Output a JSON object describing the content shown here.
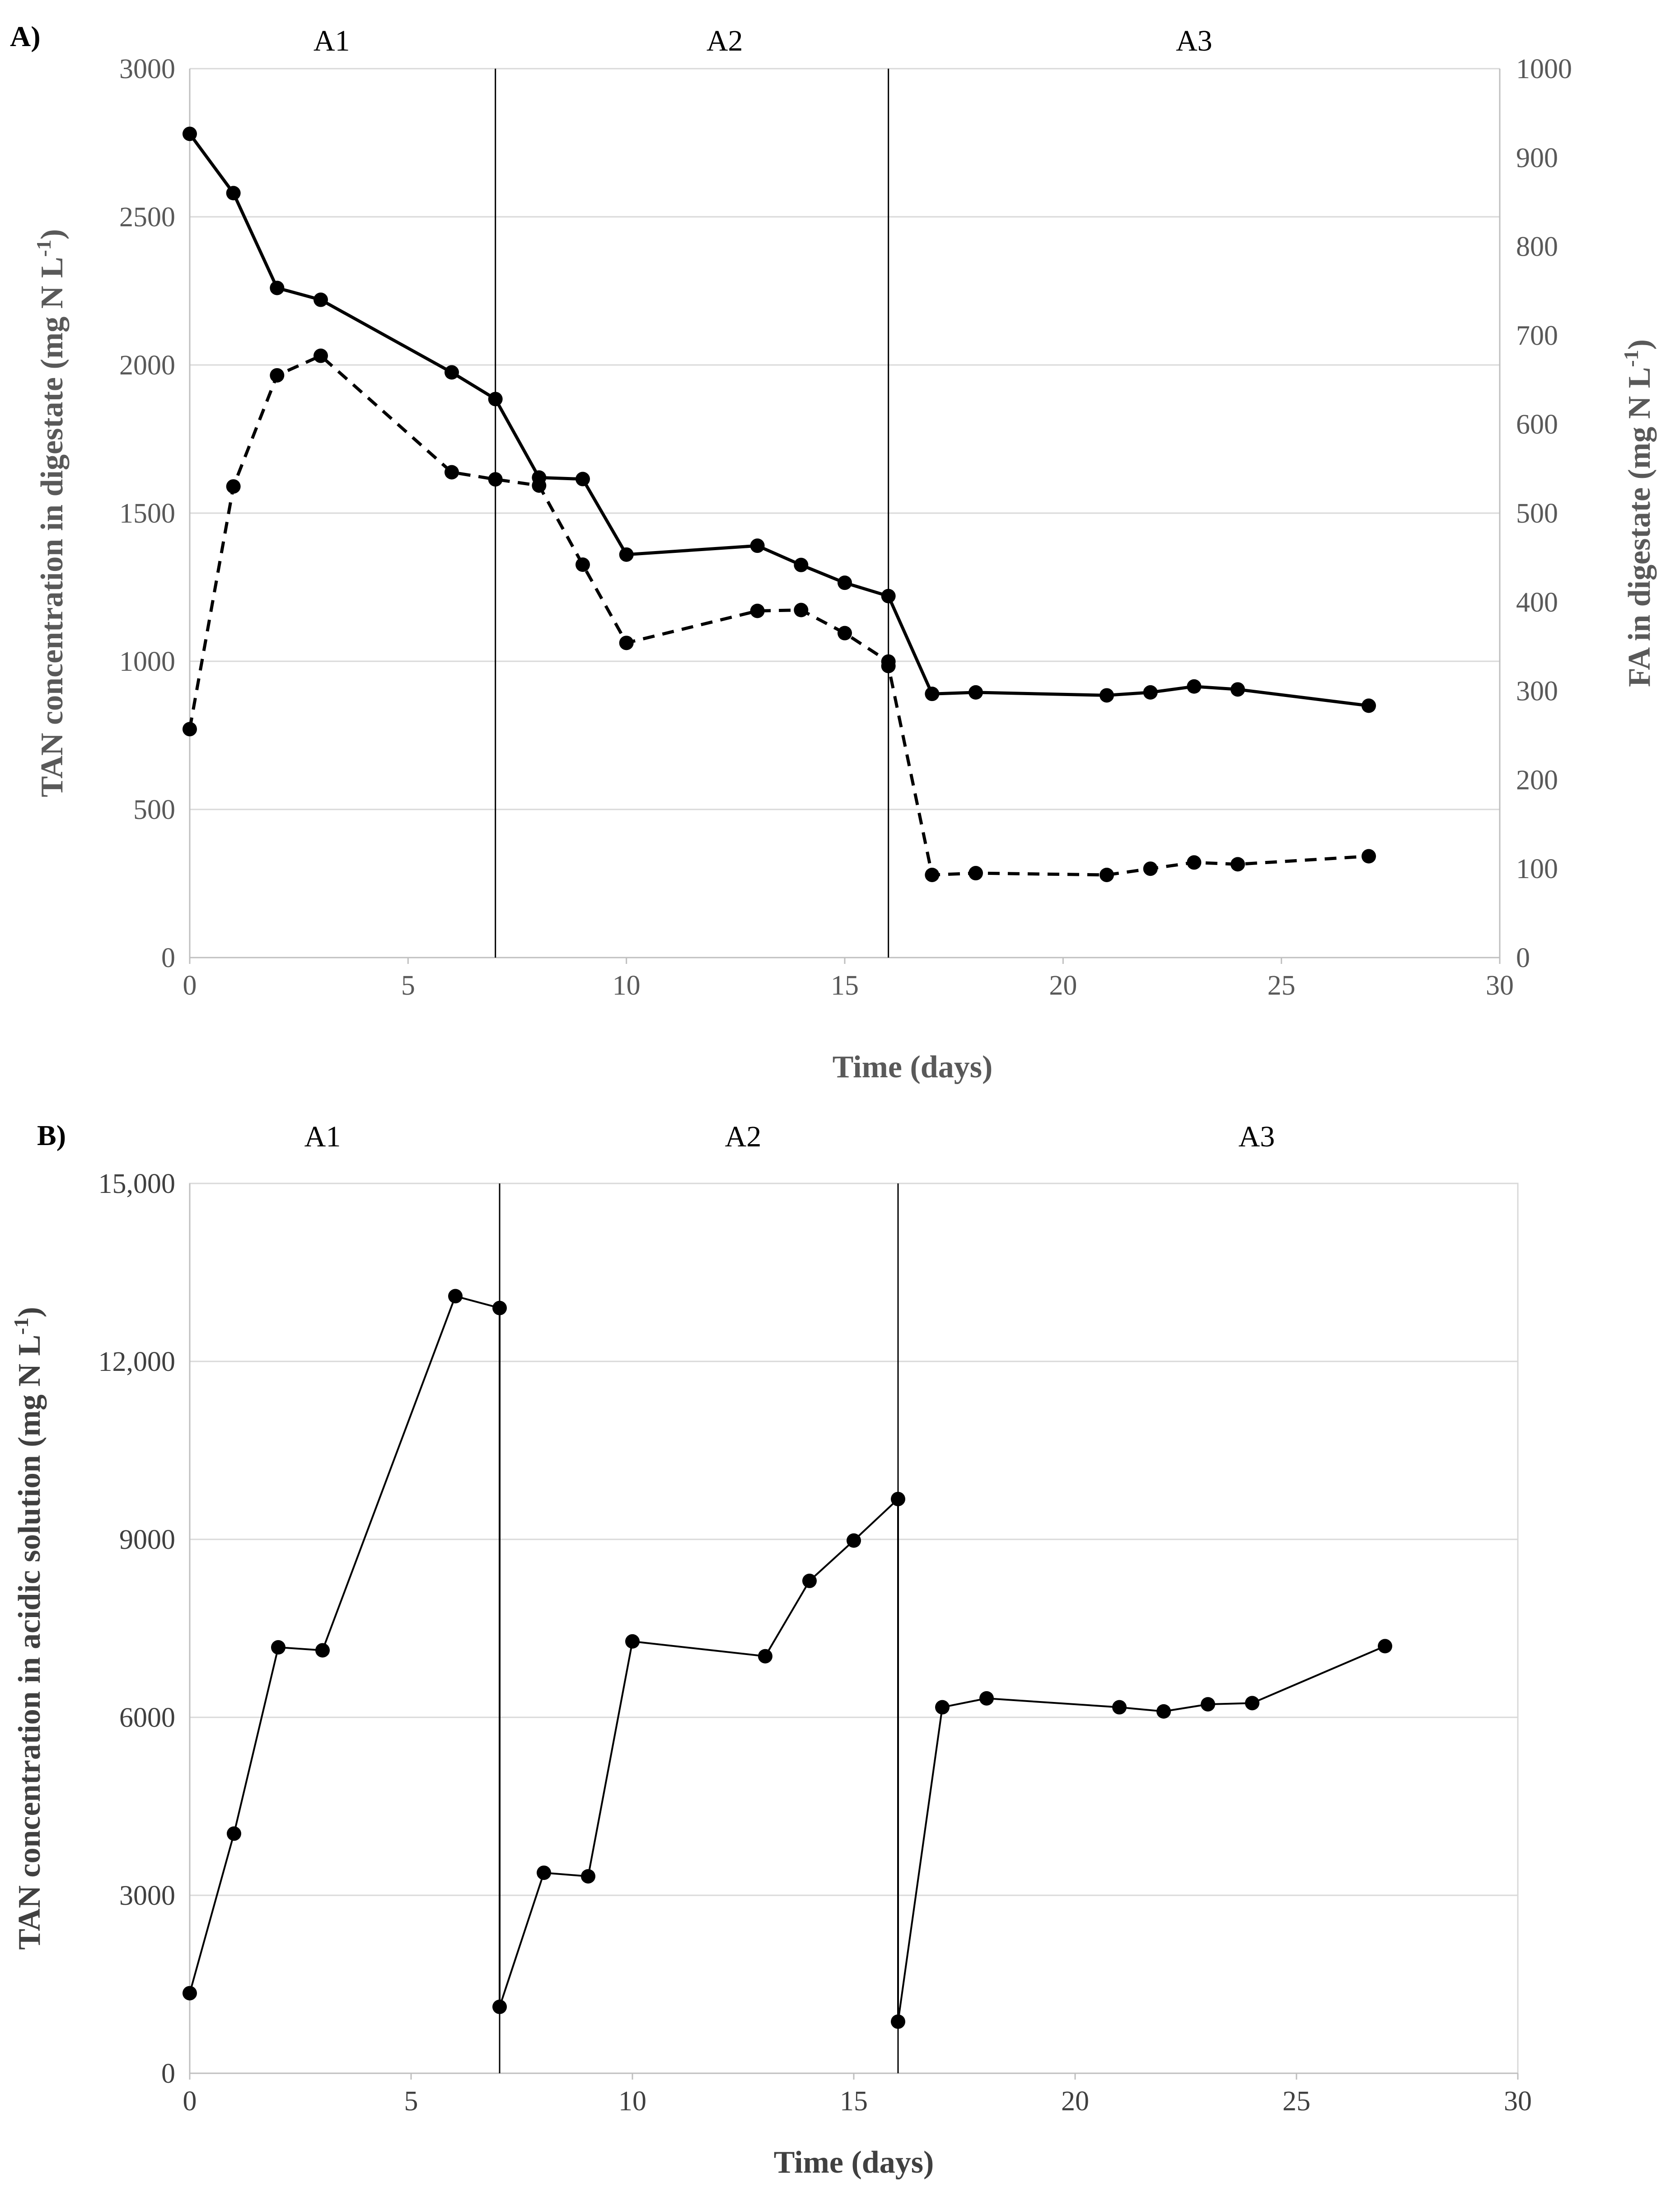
{
  "chart_data": [
    {
      "type": "line",
      "panel_label": "A)",
      "title": "",
      "xlabel": "Time (days)",
      "ylabel": "TAN concentration in digestate (mg N L",
      "ylabel_sup": "-1",
      "ylabel_close": ")",
      "y2label": "FA in digestate (mg N L",
      "y2label_sup": "-1",
      "y2label_close": ")",
      "xlim": [
        0,
        30
      ],
      "ylim": [
        0,
        3000
      ],
      "y2lim": [
        0,
        1000
      ],
      "xticks": [
        "0",
        "5",
        "10",
        "15",
        "20",
        "25",
        "30"
      ],
      "yticks": [
        "0",
        "500",
        "1000",
        "1500",
        "2000",
        "2500",
        "3000"
      ],
      "y2ticks": [
        "0",
        "100",
        "200",
        "300",
        "400",
        "500",
        "600",
        "700",
        "800",
        "900",
        "1000"
      ],
      "grid": true,
      "phase_boundaries": [
        7,
        16
      ],
      "phases": [
        {
          "label": "A1",
          "x": 3.25
        },
        {
          "label": "A2",
          "x": 12.25
        },
        {
          "label": "A3",
          "x": 23
        }
      ],
      "series": [
        {
          "name": "TAN",
          "axis": "left",
          "style": "solid",
          "x": [
            0,
            1,
            2,
            3,
            6,
            7,
            8,
            9,
            10,
            13,
            14,
            15,
            16,
            17,
            18,
            21,
            22,
            23,
            24,
            27
          ],
          "values": [
            2780,
            2580,
            2260,
            2220,
            1975,
            1885,
            1620,
            1615,
            1360,
            1390,
            1325,
            1265,
            1220,
            890,
            895,
            885,
            895,
            915,
            905,
            850
          ]
        },
        {
          "name": "FA",
          "axis": "right",
          "style": "dashed",
          "x": [
            0,
            1,
            2,
            3,
            6,
            7,
            8,
            9,
            10,
            13,
            14,
            15,
            16,
            16,
            17,
            18,
            21,
            22,
            23,
            24,
            27
          ],
          "values": [
            257,
            530,
            655,
            677,
            546,
            538,
            531,
            442,
            354,
            390,
            391,
            365,
            333,
            328,
            93,
            95,
            93,
            100,
            107,
            105,
            114
          ]
        }
      ]
    },
    {
      "type": "line",
      "panel_label": "B)",
      "title": "",
      "xlabel": "Time (days)",
      "ylabel": "TAN concentration in acidic solution (mg N L",
      "ylabel_sup": "-1",
      "ylabel_close": ")",
      "xlim": [
        0,
        30
      ],
      "ylim": [
        0,
        15000
      ],
      "xticks": [
        "0",
        "5",
        "10",
        "15",
        "20",
        "25",
        "30"
      ],
      "yticks": [
        "0",
        "3000",
        "6000",
        "9000",
        "12,000",
        "15,000"
      ],
      "grid": true,
      "phase_boundaries": [
        7,
        16
      ],
      "phases": [
        {
          "label": "A1",
          "x": 3
        },
        {
          "label": "A2",
          "x": 12.5
        },
        {
          "label": "A3",
          "x": 24.1
        }
      ],
      "series": [
        {
          "name": "TAN acidic solution",
          "axis": "left",
          "style": "solid",
          "x": [
            0,
            1,
            2,
            3,
            6,
            7,
            7,
            8,
            9,
            10,
            13,
            14,
            15,
            16,
            16,
            17,
            18,
            21,
            22,
            23,
            24,
            27
          ],
          "values": [
            1350,
            4040,
            7180,
            7130,
            13100,
            12900,
            1120,
            3380,
            3320,
            7280,
            7030,
            8300,
            8980,
            9680,
            870,
            6170,
            6320,
            6170,
            6100,
            6220,
            6240,
            7200
          ]
        }
      ]
    }
  ]
}
